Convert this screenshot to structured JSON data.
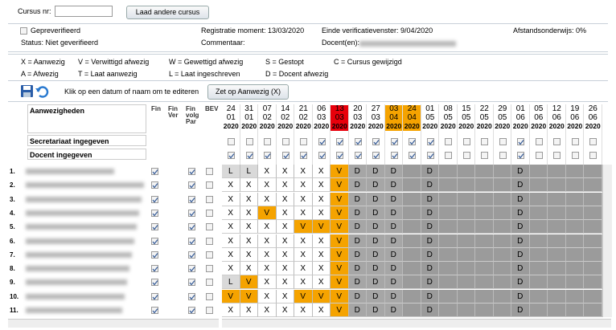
{
  "header": {
    "cursus_label": "Cursus nr:",
    "load_button": "Laad andere cursus"
  },
  "info": {
    "preverified": "Gepreverifieerd",
    "registration": "Registratie moment: 13/03/2020",
    "window_end": "Einde verificatievenster: 9/04/2020",
    "distance": "Afstandsonderwijs: 0%",
    "status": "Status: Niet geverifieerd",
    "comment": "Commentaar:",
    "teachers": "Docent(en):"
  },
  "legend": [
    "X = Aanwezig",
    "V = Verwittigd afwezig",
    "W = Gewettigd afwezig",
    "S = Gestopt",
    "C = Cursus gewijzigd",
    "A = Afwezig",
    "T = Laat aanwezig",
    "L = Laat ingeschreven",
    "D = Docent afwezig"
  ],
  "toolbar": {
    "hint": "Klik op een datum of naam om te editeren",
    "button": "Zet op Aanwezig (X)"
  },
  "grid": {
    "title": "Aanwezigheden",
    "columns": [
      [
        "Fin"
      ],
      [
        "Fin",
        "Ver"
      ],
      [
        "Fin",
        "volg",
        "Par"
      ],
      [
        "BEV"
      ]
    ],
    "dates": [
      {
        "day": "24",
        "month": "01",
        "year": "2020"
      },
      {
        "day": "31",
        "month": "01",
        "year": "2020"
      },
      {
        "day": "07",
        "month": "02",
        "year": "2020"
      },
      {
        "day": "14",
        "month": "02",
        "year": "2020"
      },
      {
        "day": "21",
        "month": "02",
        "year": "2020"
      },
      {
        "day": "06",
        "month": "03",
        "year": "2020"
      },
      {
        "day": "13",
        "month": "03",
        "year": "2020",
        "highlight": "#e8000b"
      },
      {
        "day": "20",
        "month": "03",
        "year": "2020"
      },
      {
        "day": "27",
        "month": "03",
        "year": "2020"
      },
      {
        "day": "03",
        "month": "04",
        "year": "2020",
        "highlight": "#f5a300"
      },
      {
        "day": "24",
        "month": "04",
        "year": "2020",
        "highlight": "#f5a300"
      },
      {
        "day": "01",
        "month": "05",
        "year": "2020"
      },
      {
        "day": "08",
        "month": "05",
        "year": "2020"
      },
      {
        "day": "15",
        "month": "05",
        "year": "2020"
      },
      {
        "day": "22",
        "month": "05",
        "year": "2020"
      },
      {
        "day": "29",
        "month": "05",
        "year": "2020"
      },
      {
        "day": "01",
        "month": "06",
        "year": "2020"
      },
      {
        "day": "05",
        "month": "06",
        "year": "2020"
      },
      {
        "day": "12",
        "month": "06",
        "year": "2020"
      },
      {
        "day": "19",
        "month": "06",
        "year": "2020"
      },
      {
        "day": "26",
        "month": "06",
        "year": "2020"
      }
    ],
    "secretariat_label": "Secretariaat ingegeven",
    "teacher_label": "Docent ingegeven",
    "secretariat_checks": [
      false,
      false,
      false,
      false,
      false,
      true,
      true,
      true,
      true,
      true,
      true,
      true,
      false,
      false,
      false,
      false,
      true,
      false,
      false,
      false,
      false
    ],
    "teacher_checks": [
      true,
      true,
      true,
      true,
      true,
      true,
      true,
      true,
      true,
      true,
      true,
      true,
      false,
      false,
      false,
      false,
      true,
      false,
      false,
      false,
      false
    ],
    "rows": [
      {
        "number": "1.",
        "fin": true,
        "fin_ver": false,
        "fin_volg_par": true,
        "bev": false,
        "cells": [
          "L",
          "L",
          "X",
          "X",
          "X",
          "X",
          "V",
          "D",
          "D",
          "D",
          null,
          "D",
          null,
          null,
          null,
          null,
          "D",
          null,
          null,
          null,
          null
        ]
      },
      {
        "number": "2.",
        "fin": true,
        "fin_ver": false,
        "fin_volg_par": true,
        "bev": false,
        "cells": [
          "X",
          "X",
          "X",
          "X",
          "X",
          "X",
          "V",
          "D",
          "D",
          "D",
          null,
          "D",
          null,
          null,
          null,
          null,
          "D",
          null,
          null,
          null,
          null
        ]
      },
      {
        "number": "3.",
        "fin": true,
        "fin_ver": false,
        "fin_volg_par": true,
        "bev": false,
        "cells": [
          "X",
          "X",
          "X",
          "X",
          "X",
          "X",
          "V",
          "D",
          "D",
          "D",
          null,
          "D",
          null,
          null,
          null,
          null,
          "D",
          null,
          null,
          null,
          null
        ]
      },
      {
        "number": "4.",
        "fin": true,
        "fin_ver": false,
        "fin_volg_par": true,
        "bev": false,
        "cells": [
          "X",
          "X",
          "V",
          "X",
          "X",
          "X",
          "V",
          "D",
          "D",
          "D",
          null,
          "D",
          null,
          null,
          null,
          null,
          "D",
          null,
          null,
          null,
          null
        ]
      },
      {
        "number": "5.",
        "fin": true,
        "fin_ver": false,
        "fin_volg_par": true,
        "bev": false,
        "cells": [
          "X",
          "X",
          "X",
          "X",
          "V",
          "V",
          "V",
          "D",
          "D",
          "D",
          null,
          "D",
          null,
          null,
          null,
          null,
          "D",
          null,
          null,
          null,
          null
        ]
      },
      {
        "number": "6.",
        "fin": true,
        "fin_ver": false,
        "fin_volg_par": true,
        "bev": false,
        "cells": [
          "X",
          "X",
          "X",
          "X",
          "X",
          "X",
          "V",
          "D",
          "D",
          "D",
          null,
          "D",
          null,
          null,
          null,
          null,
          "D",
          null,
          null,
          null,
          null
        ]
      },
      {
        "number": "7.",
        "fin": true,
        "fin_ver": false,
        "fin_volg_par": true,
        "bev": false,
        "cells": [
          "X",
          "X",
          "X",
          "X",
          "X",
          "X",
          "V",
          "D",
          "D",
          "D",
          null,
          "D",
          null,
          null,
          null,
          null,
          "D",
          null,
          null,
          null,
          null
        ]
      },
      {
        "number": "8.",
        "fin": true,
        "fin_ver": false,
        "fin_volg_par": true,
        "bev": false,
        "cells": [
          "X",
          "X",
          "X",
          "X",
          "X",
          "X",
          "V",
          "D",
          "D",
          "D",
          null,
          "D",
          null,
          null,
          null,
          null,
          "D",
          null,
          null,
          null,
          null
        ]
      },
      {
        "number": "9.",
        "fin": true,
        "fin_ver": false,
        "fin_volg_par": true,
        "bev": false,
        "cells": [
          "L",
          "V",
          "X",
          "X",
          "X",
          "X",
          "V",
          "D",
          "D",
          "D",
          null,
          "D",
          null,
          null,
          null,
          null,
          "D",
          null,
          null,
          null,
          null
        ]
      },
      {
        "number": "10.",
        "fin": true,
        "fin_ver": false,
        "fin_volg_par": true,
        "bev": false,
        "cells": [
          "V",
          "V",
          "X",
          "X",
          "V",
          "V",
          "V",
          "D",
          "D",
          "D",
          null,
          "D",
          null,
          null,
          null,
          null,
          "D",
          null,
          null,
          null,
          null
        ]
      },
      {
        "number": "11.",
        "fin": true,
        "fin_ver": false,
        "fin_volg_par": true,
        "bev": false,
        "cells": [
          "X",
          "X",
          "X",
          "X",
          "X",
          "X",
          "V",
          "D",
          "D",
          "D",
          null,
          "D",
          null,
          null,
          null,
          null,
          "D",
          null,
          null,
          null,
          null
        ]
      }
    ]
  }
}
